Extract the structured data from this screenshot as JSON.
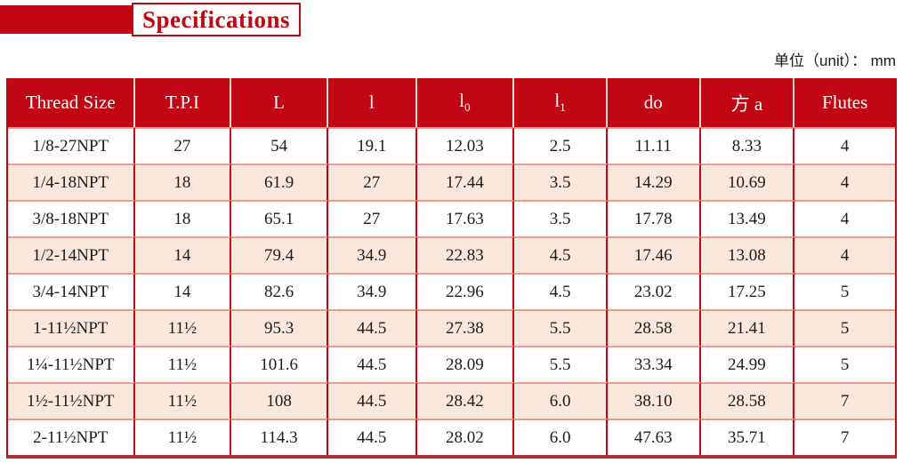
{
  "header": {
    "title": "Specifications",
    "unit_label": "单位（unit）： mm"
  },
  "table": {
    "headers": [
      {
        "text": "Thread Size",
        "sub": ""
      },
      {
        "text": "T.P.I",
        "sub": ""
      },
      {
        "text": "L",
        "sub": ""
      },
      {
        "text": "l",
        "sub": ""
      },
      {
        "text": "l",
        "sub": "0"
      },
      {
        "text": "l",
        "sub": "1"
      },
      {
        "text": "do",
        "sub": ""
      },
      {
        "text": "方 a",
        "sub": ""
      },
      {
        "text": "Flutes",
        "sub": ""
      }
    ],
    "rows": [
      [
        "1/8-27NPT",
        "27",
        "54",
        "19.1",
        "12.03",
        "2.5",
        "11.11",
        "8.33",
        "4"
      ],
      [
        "1/4-18NPT",
        "18",
        "61.9",
        "27",
        "17.44",
        "3.5",
        "14.29",
        "10.69",
        "4"
      ],
      [
        "3/8-18NPT",
        "18",
        "65.1",
        "27",
        "17.63",
        "3.5",
        "17.78",
        "13.49",
        "4"
      ],
      [
        "1/2-14NPT",
        "14",
        "79.4",
        "34.9",
        "22.83",
        "4.5",
        "17.46",
        "13.08",
        "4"
      ],
      [
        "3/4-14NPT",
        "14",
        "82.6",
        "34.9",
        "22.96",
        "4.5",
        "23.02",
        "17.25",
        "5"
      ],
      [
        "1-11½NPT",
        "11½",
        "95.3",
        "44.5",
        "27.38",
        "5.5",
        "28.58",
        "21.41",
        "5"
      ],
      [
        "1¼-11½NPT",
        "11½",
        "101.6",
        "44.5",
        "28.09",
        "5.5",
        "33.34",
        "24.99",
        "5"
      ],
      [
        "1½-11½NPT",
        "11½",
        "108",
        "44.5",
        "28.42",
        "6.0",
        "38.10",
        "28.58",
        "7"
      ],
      [
        "2-11½NPT",
        "11½",
        "114.3",
        "44.5",
        "28.02",
        "6.0",
        "47.63",
        "35.71",
        "7"
      ]
    ]
  },
  "colors": {
    "accent_red": "#c00713",
    "row_alt_pink": "#fae7dc",
    "horizontal_border": "#ea9c8d",
    "header_separator": "#f6ded6",
    "bottom_border": "#b03036"
  }
}
